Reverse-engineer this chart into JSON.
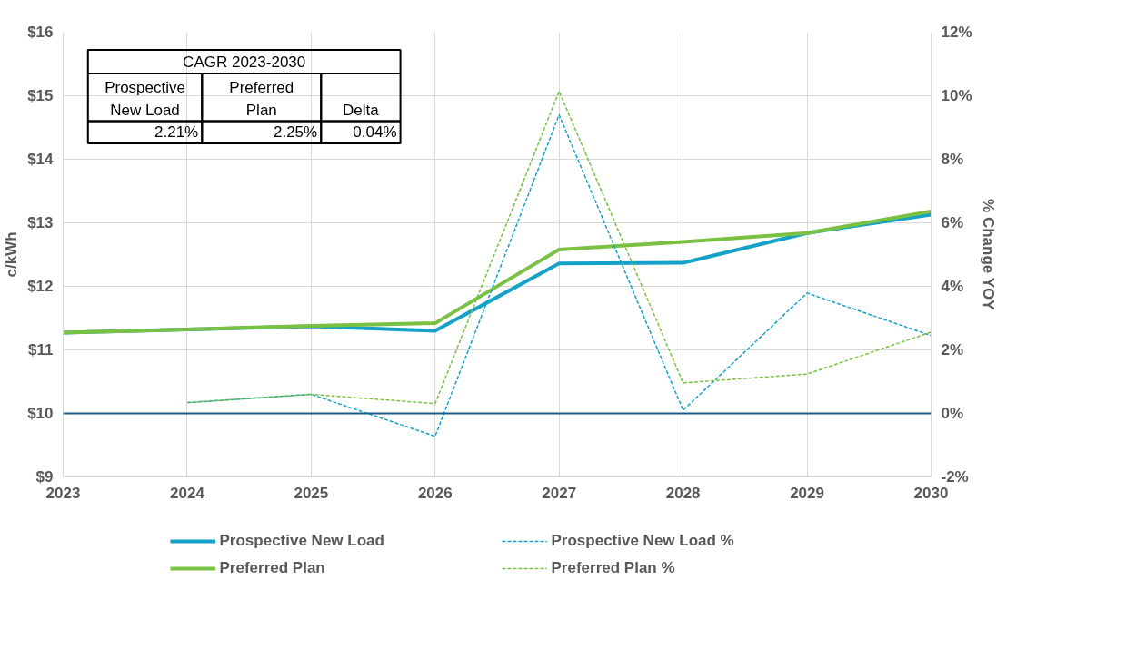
{
  "chart_data": {
    "type": "line",
    "x": [
      2023,
      2024,
      2025,
      2026,
      2027,
      2028,
      2029,
      2030
    ],
    "xlim": [
      2023,
      2030
    ],
    "xticks": [
      2023,
      2024,
      2025,
      2026,
      2027,
      2028,
      2029,
      2030
    ],
    "ylabel": "c/kWh",
    "y2label": "% Change YOY",
    "ylim": [
      9,
      16
    ],
    "yticks": [
      {
        "value": 9,
        "label": "$9"
      },
      {
        "value": 10,
        "label": "$10"
      },
      {
        "value": 11,
        "label": "$11"
      },
      {
        "value": 12,
        "label": "$12"
      },
      {
        "value": 13,
        "label": "$13"
      },
      {
        "value": 14,
        "label": "$14"
      },
      {
        "value": 15,
        "label": "$15"
      },
      {
        "value": 16,
        "label": "$16"
      }
    ],
    "y2lim": [
      -2,
      12
    ],
    "y2ticks": [
      {
        "value": -2,
        "label": "-2%"
      },
      {
        "value": 0,
        "label": "0%"
      },
      {
        "value": 2,
        "label": "2%"
      },
      {
        "value": 4,
        "label": "4%"
      },
      {
        "value": 6,
        "label": "6%"
      },
      {
        "value": 8,
        "label": "8%"
      },
      {
        "value": 10,
        "label": "10%"
      },
      {
        "value": 12,
        "label": "12%"
      }
    ],
    "series": [
      {
        "name": "Prospective New Load",
        "color": "#16a2c8",
        "line_style": "solid",
        "values": [
          11.27,
          11.32,
          11.37,
          11.3,
          12.36,
          12.37,
          12.84,
          13.13
        ]
      },
      {
        "name": "Preferred Plan",
        "color": "#7ac143",
        "line_style": "solid",
        "values": [
          11.27,
          11.32,
          11.38,
          11.42,
          12.58,
          12.7,
          12.84,
          13.18
        ]
      },
      {
        "name": "Prospective New Load %",
        "color": "#16a2c8",
        "line_style": "dashed",
        "axis": "y2",
        "x": [
          2024,
          2025,
          2026,
          2027,
          2028,
          2029,
          2030
        ],
        "values": [
          0.34,
          0.6,
          -0.72,
          9.4,
          0.1,
          3.79,
          2.45
        ]
      },
      {
        "name": "Preferred Plan %",
        "color": "#7ac143",
        "line_style": "dashed",
        "axis": "y2",
        "x": [
          2024,
          2025,
          2026,
          2027,
          2028,
          2029,
          2030
        ],
        "values": [
          0.34,
          0.6,
          0.31,
          10.14,
          0.96,
          1.24,
          2.56
        ]
      }
    ],
    "ref_lines": [
      {
        "axis": "y2",
        "value": 0,
        "color": "#1b5c86"
      }
    ],
    "annotations": [
      "CAGR 2023-2030",
      "Prospective\nNew Load",
      "Preferred\nPlan",
      "Delta",
      "2.21%",
      "2.25%",
      "0.04%"
    ],
    "grid": true,
    "legend": "bottom",
    "marker": "none"
  }
}
